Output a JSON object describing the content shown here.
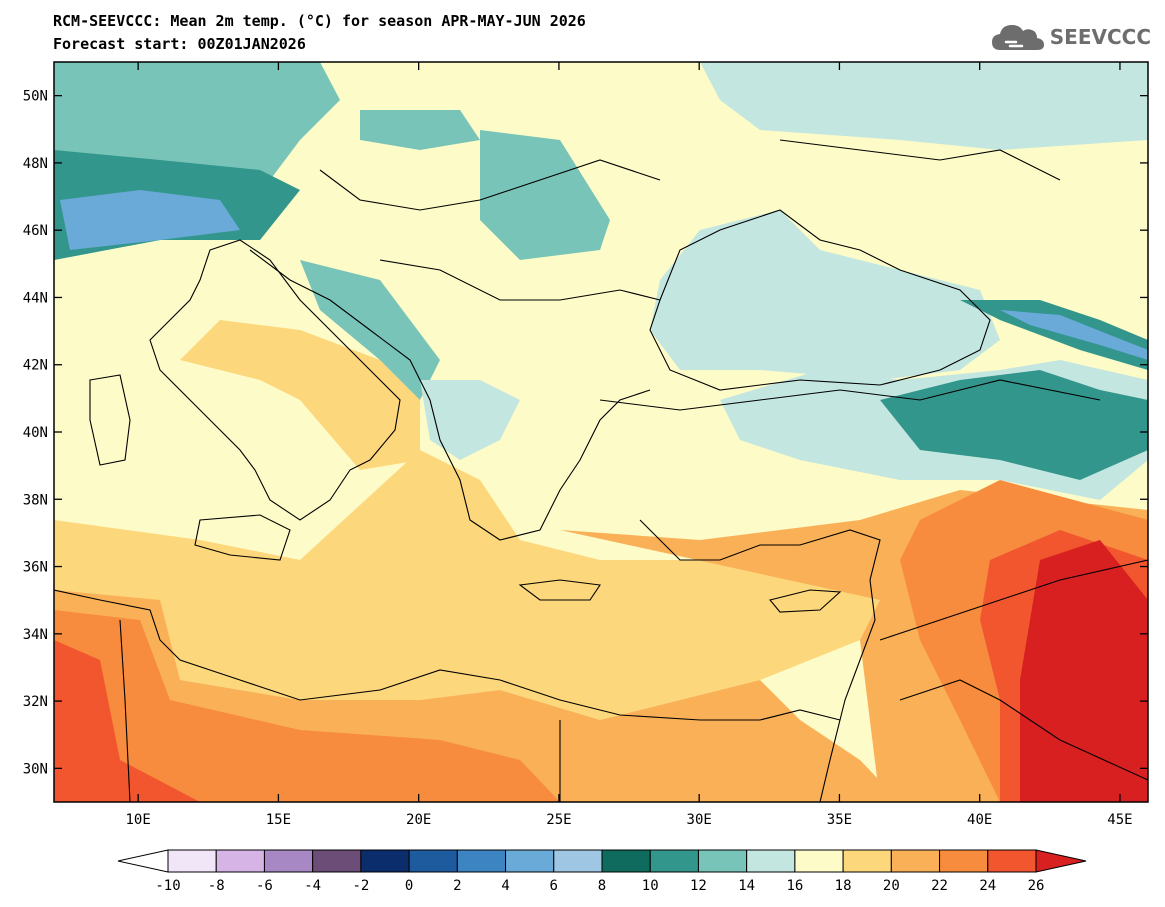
{
  "header": {
    "line1": "RCM-SEEVCCC: Mean 2m temp. (°C) for season APR-MAY-JUN 2026",
    "line2": "Forecast start: 00Z01JAN2026"
  },
  "logo": {
    "text": "SEEVCCC",
    "icon": "cloud-logo-icon"
  },
  "map": {
    "lon_range": [
      7,
      46
    ],
    "lat_range": [
      29,
      51
    ],
    "y_ticks": [
      {
        "lat": 50,
        "label": "50N"
      },
      {
        "lat": 48,
        "label": "48N"
      },
      {
        "lat": 46,
        "label": "46N"
      },
      {
        "lat": 44,
        "label": "44N"
      },
      {
        "lat": 42,
        "label": "42N"
      },
      {
        "lat": 40,
        "label": "40N"
      },
      {
        "lat": 38,
        "label": "38N"
      },
      {
        "lat": 36,
        "label": "36N"
      },
      {
        "lat": 34,
        "label": "34N"
      },
      {
        "lat": 32,
        "label": "32N"
      },
      {
        "lat": 30,
        "label": "30N"
      }
    ],
    "x_ticks": [
      {
        "lon": 10,
        "label": "10E"
      },
      {
        "lon": 15,
        "label": "15E"
      },
      {
        "lon": 20,
        "label": "20E"
      },
      {
        "lon": 25,
        "label": "25E"
      },
      {
        "lon": 30,
        "label": "30E"
      },
      {
        "lon": 35,
        "label": "35E"
      },
      {
        "lon": 40,
        "label": "40E"
      },
      {
        "lon": 45,
        "label": "45E"
      }
    ]
  },
  "colorbar": {
    "labels": [
      "-10",
      "-8",
      "-6",
      "-4",
      "-2",
      "0",
      "2",
      "4",
      "6",
      "8",
      "10",
      "12",
      "14",
      "16",
      "18",
      "20",
      "22",
      "24",
      "26"
    ],
    "colors": [
      "#f1e6f7",
      "#d6b4e6",
      "#a888c4",
      "#6b4d78",
      "#0b2d6b",
      "#1e5a9e",
      "#3c85c2",
      "#6aaad8",
      "#9fc6e2",
      "#0e6b5e",
      "#33968c",
      "#78c4b8",
      "#c4e6e0",
      "#fdfbc8",
      "#fcd77b",
      "#f9b057",
      "#f78b3e",
      "#f1562f"
    ],
    "under_color": "#ffffff",
    "over_color": "#d82020"
  },
  "style": {
    "land_base": "#fcd77b",
    "sea_base": "#c4e6e0"
  }
}
